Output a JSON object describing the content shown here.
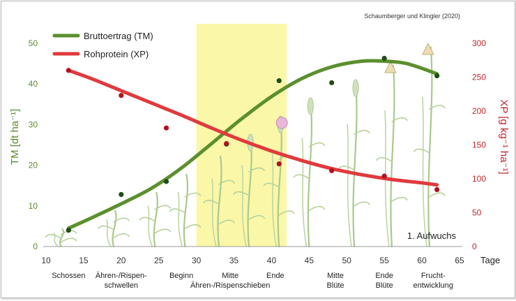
{
  "citation": "Schaumberger und Klingler (2020)",
  "annotation": "1. Aufwuchs",
  "legend": {
    "series_1": "Bruttoertrag (TM)",
    "series_2": "Rohprotein (XP)"
  },
  "axes": {
    "y_left_label": "TM [dt ha⁻¹]",
    "y_right_label": "XP [g kg⁻¹ ha⁻¹]",
    "x_unit_label": "Tage"
  },
  "stages": [
    {
      "x": 13,
      "lines": [
        "Schossen"
      ]
    },
    {
      "x": 20,
      "lines": [
        "Ähren-/Rispen-",
        "schwellen"
      ]
    },
    {
      "x": 28,
      "lines": [
        "Beginn"
      ]
    },
    {
      "x": 34.5,
      "lines": [
        "Mitte"
      ]
    },
    {
      "x": 40.5,
      "lines": [
        "Ende"
      ]
    },
    {
      "x": 34.5,
      "lines": [
        "",
        "Ähren-/Rispenschieben"
      ]
    },
    {
      "x": 48.5,
      "lines": [
        "Mitte",
        "Blüte"
      ]
    },
    {
      "x": 55,
      "lines": [
        "Ende",
        "Blüte"
      ]
    },
    {
      "x": 61.5,
      "lines": [
        "Frucht-",
        "entwicklung"
      ]
    }
  ],
  "colors": {
    "tm": "#5b8f2e",
    "xp": "#e03a3e",
    "tm_point": "#1f4d16",
    "xp_point": "#b3121c",
    "highlight": "#fbf7a8",
    "left_axis": "#5a8a2e",
    "right_axis": "#c0272d"
  },
  "chart_data": {
    "type": "line",
    "x_label": "Tage",
    "xlim": [
      10,
      65
    ],
    "x_ticks": [
      10,
      15,
      20,
      25,
      30,
      35,
      40,
      45,
      50,
      55,
      60,
      65
    ],
    "y_left": {
      "label": "TM [dt ha⁻¹]",
      "lim": [
        0,
        50
      ],
      "ticks": [
        0,
        10,
        20,
        30,
        40,
        50
      ]
    },
    "y_right": {
      "label": "XP [g kg⁻¹ ha⁻¹]",
      "lim": [
        0,
        300
      ],
      "ticks": [
        0,
        50,
        100,
        150,
        200,
        250,
        300
      ]
    },
    "highlight_x_range": [
      30,
      42
    ],
    "series": [
      {
        "name": "Bruttoertrag (TM)",
        "axis": "left",
        "points": [
          [
            13,
            4
          ],
          [
            20,
            12.8
          ],
          [
            26,
            16
          ],
          [
            34,
            25.2
          ],
          [
            41,
            40.8
          ],
          [
            48,
            40.3
          ],
          [
            55,
            46.3
          ],
          [
            62,
            42
          ]
        ],
        "trend": [
          [
            13,
            4.5
          ],
          [
            16,
            7
          ],
          [
            20,
            10.5
          ],
          [
            24,
            14.3
          ],
          [
            28,
            19.3
          ],
          [
            32,
            25.3
          ],
          [
            36,
            31.4
          ],
          [
            40,
            36.9
          ],
          [
            44,
            41.3
          ],
          [
            48,
            44.2
          ],
          [
            52,
            45.6
          ],
          [
            55,
            45.6
          ],
          [
            58,
            45
          ],
          [
            62,
            42.5
          ]
        ]
      },
      {
        "name": "Rohprotein (XP)",
        "axis": "right",
        "points": [
          [
            13,
            260
          ],
          [
            20,
            223
          ],
          [
            26,
            175
          ],
          [
            34,
            152
          ],
          [
            41,
            122
          ],
          [
            48,
            112
          ],
          [
            55,
            104
          ],
          [
            62,
            84
          ]
        ],
        "trend": [
          [
            13,
            260
          ],
          [
            16,
            248
          ],
          [
            20,
            230
          ],
          [
            24,
            212
          ],
          [
            28,
            194
          ],
          [
            32,
            175
          ],
          [
            36,
            157
          ],
          [
            40,
            141
          ],
          [
            44,
            127
          ],
          [
            48,
            115
          ],
          [
            52,
            106
          ],
          [
            56,
            99
          ],
          [
            60,
            94
          ],
          [
            62,
            91
          ]
        ]
      }
    ]
  }
}
